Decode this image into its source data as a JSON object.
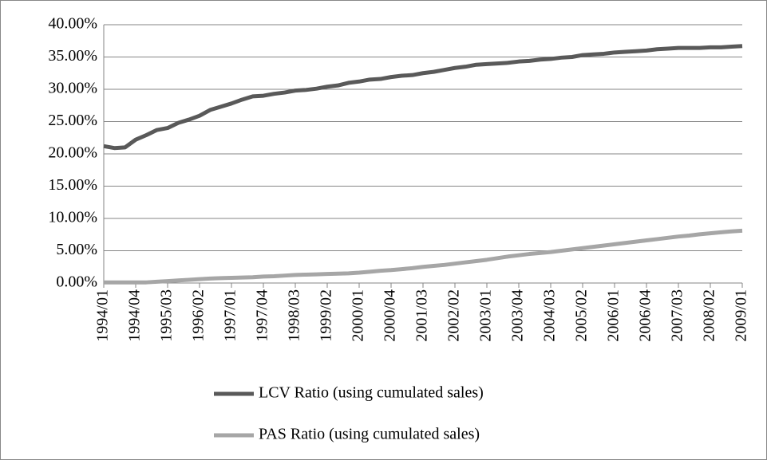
{
  "chart_data": {
    "type": "line",
    "categories": [
      "1994/01",
      null,
      null,
      "1994/04",
      null,
      null,
      "1995/03",
      null,
      null,
      "1996/02",
      null,
      null,
      "1997/01",
      null,
      null,
      "1997/04",
      null,
      null,
      "1998/03",
      null,
      null,
      "1999/02",
      null,
      null,
      "2000/01",
      null,
      null,
      "2000/04",
      null,
      null,
      "2001/03",
      null,
      null,
      "2002/02",
      null,
      null,
      "2003/01",
      null,
      null,
      "2003/04",
      null,
      null,
      "2004/03",
      null,
      null,
      "2005/02",
      null,
      null,
      "2006/01",
      null,
      null,
      "2006/04",
      null,
      null,
      "2007/03",
      null,
      null,
      "2008/02",
      null,
      null,
      "2009/01"
    ],
    "series": [
      {
        "name": "LCV Ratio (using cumulated sales)",
        "color": "#595959",
        "values": [
          21.2,
          20.9,
          21.0,
          22.2,
          22.9,
          23.7,
          24.0,
          24.8,
          25.3,
          25.9,
          26.8,
          27.3,
          27.8,
          28.4,
          28.9,
          29.0,
          29.3,
          29.5,
          29.8,
          29.9,
          30.1,
          30.4,
          30.6,
          31.0,
          31.2,
          31.5,
          31.6,
          31.9,
          32.1,
          32.2,
          32.5,
          32.7,
          33.0,
          33.3,
          33.5,
          33.8,
          33.9,
          34.0,
          34.1,
          34.3,
          34.4,
          34.6,
          34.7,
          34.9,
          35.0,
          35.3,
          35.4,
          35.5,
          35.7,
          35.8,
          35.9,
          36.0,
          36.2,
          36.3,
          36.4,
          36.4,
          36.4,
          36.5,
          36.5,
          36.6,
          36.7
        ]
      },
      {
        "name": "PAS Ratio (using cumulated sales)",
        "color": "#a6a6a6",
        "values": [
          0.1,
          0.1,
          0.1,
          0.1,
          0.1,
          0.2,
          0.3,
          0.4,
          0.5,
          0.6,
          0.7,
          0.75,
          0.8,
          0.85,
          0.9,
          1.0,
          1.05,
          1.15,
          1.25,
          1.3,
          1.35,
          1.4,
          1.45,
          1.5,
          1.6,
          1.75,
          1.9,
          2.0,
          2.15,
          2.3,
          2.5,
          2.65,
          2.8,
          3.0,
          3.2,
          3.4,
          3.6,
          3.85,
          4.1,
          4.3,
          4.5,
          4.65,
          4.8,
          5.0,
          5.2,
          5.4,
          5.6,
          5.8,
          6.0,
          6.2,
          6.4,
          6.6,
          6.8,
          7.0,
          7.2,
          7.35,
          7.55,
          7.7,
          7.85,
          8.0,
          8.1
        ]
      }
    ],
    "ylim": [
      0,
      40
    ],
    "yticks": [
      {
        "value": 0,
        "label": "0.00%"
      },
      {
        "value": 5,
        "label": "5.00%"
      },
      {
        "value": 10,
        "label": "10.00%"
      },
      {
        "value": 15,
        "label": "15.00%"
      },
      {
        "value": 20,
        "label": "20.00%"
      },
      {
        "value": 25,
        "label": "25.00%"
      },
      {
        "value": 30,
        "label": "30.00%"
      },
      {
        "value": 35,
        "label": "35.00%"
      },
      {
        "value": 40,
        "label": "40.00%"
      }
    ],
    "grid": true
  }
}
